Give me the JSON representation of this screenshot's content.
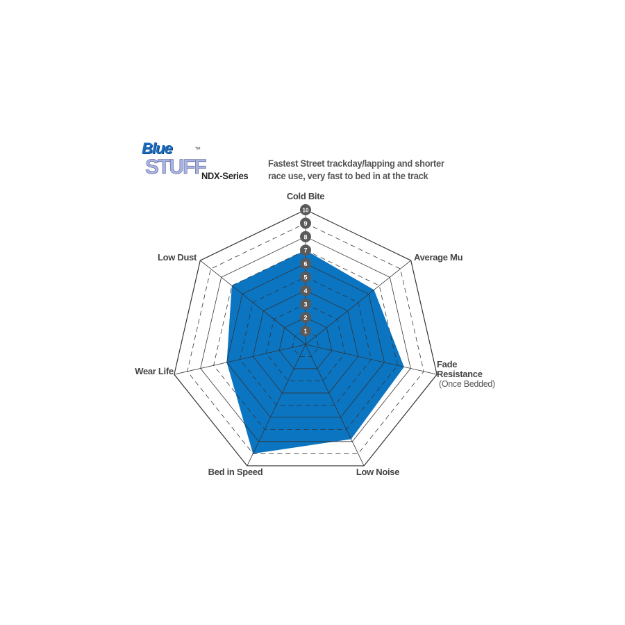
{
  "logo": {
    "line1": "Blue",
    "line2": "STUFF",
    "trademark": "™",
    "series": "NDX-Series"
  },
  "header": {
    "line1": "Fastest Street trackday/lapping and shorter",
    "line2": "race use, very fast to bed in at the track"
  },
  "colors": {
    "fill": "#0b75c2",
    "grid": "#333333",
    "badge": "#5a5a5a",
    "text": "#444444"
  },
  "chart_data": {
    "type": "radar",
    "title": "",
    "axes": [
      "Cold Bite",
      "Average Mu",
      "Fade Resistance",
      "Low Noise",
      "Bed in Speed",
      "Wear Life",
      "Low Dust"
    ],
    "axis_sublabels": {
      "Fade Resistance": "(Once Bedded)"
    },
    "values": [
      7,
      6.5,
      7.5,
      7.8,
      9,
      6,
      7
    ],
    "range": [
      0,
      10
    ],
    "tick_labels": [
      "1",
      "2",
      "3",
      "4",
      "5",
      "6",
      "7",
      "8",
      "9",
      "10"
    ]
  }
}
